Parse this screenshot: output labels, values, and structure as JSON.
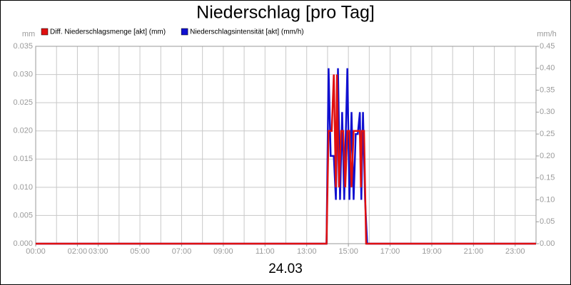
{
  "chart_data": {
    "type": "line",
    "title": "Niederschlag [pro Tag]",
    "subtitle": "24.03",
    "ylabel": "mm",
    "y2label": "mm/h",
    "xlim": [
      0,
      24
    ],
    "xticks": [
      {
        "value": 0,
        "label": "00:00"
      },
      {
        "value": 2,
        "label": "02:00"
      },
      {
        "value": 3,
        "label": "03:00"
      },
      {
        "value": 5,
        "label": "05:00"
      },
      {
        "value": 7,
        "label": "07:00"
      },
      {
        "value": 9,
        "label": "09:00"
      },
      {
        "value": 11,
        "label": "11:00"
      },
      {
        "value": 13,
        "label": "13:00"
      },
      {
        "value": 15,
        "label": "15:00"
      },
      {
        "value": 17,
        "label": "17:00"
      },
      {
        "value": 19,
        "label": "19:00"
      },
      {
        "value": 21,
        "label": "21:00"
      },
      {
        "value": 23,
        "label": "23:00"
      }
    ],
    "xgrid": [
      1,
      2,
      3,
      4,
      5,
      6,
      7,
      8,
      9,
      10,
      11,
      12,
      13,
      14,
      15,
      16,
      17,
      18,
      19,
      20,
      21,
      22,
      23
    ],
    "ylim": [
      0,
      0.035
    ],
    "yticks": [
      {
        "value": 0,
        "label": "0.000"
      },
      {
        "value": 0.005,
        "label": "0.005"
      },
      {
        "value": 0.01,
        "label": "0.010"
      },
      {
        "value": 0.015,
        "label": "0.015"
      },
      {
        "value": 0.02,
        "label": "0.020"
      },
      {
        "value": 0.025,
        "label": "0.025"
      },
      {
        "value": 0.03,
        "label": "0.030"
      },
      {
        "value": 0.035,
        "label": "0.035"
      }
    ],
    "y2lim": [
      0,
      0.45
    ],
    "y2ticks": [
      {
        "value": 0,
        "label": "0.00"
      },
      {
        "value": 0.05,
        "label": "0.05"
      },
      {
        "value": 0.1,
        "label": "0.10"
      },
      {
        "value": 0.15,
        "label": "0.15"
      },
      {
        "value": 0.2,
        "label": "0.20"
      },
      {
        "value": 0.25,
        "label": "0.25"
      },
      {
        "value": 0.3,
        "label": "0.30"
      },
      {
        "value": 0.35,
        "label": "0.35"
      },
      {
        "value": 0.4,
        "label": "0.40"
      },
      {
        "value": 0.45,
        "label": "0.45"
      }
    ],
    "grid": true,
    "series": [
      {
        "name": "Diff. Niederschlagsmenge [akt] (mm)",
        "color": "#e01010",
        "x": [
          0,
          13.95,
          14.05,
          14.2,
          14.3,
          14.4,
          14.45,
          14.55,
          14.65,
          14.75,
          14.85,
          14.95,
          15.05,
          15.15,
          15.25,
          15.35,
          15.45,
          15.55,
          15.6,
          15.65,
          15.75,
          15.85,
          24
        ],
        "values": [
          0,
          0,
          0.02,
          0.02,
          0.03,
          0.01,
          0.03,
          0.01,
          0.02,
          0.02,
          0.01,
          0.02,
          0.02,
          0.01,
          0.02,
          0.02,
          0.02,
          0.02,
          0.01,
          0.02,
          0.02,
          0,
          0
        ]
      },
      {
        "name": "Niederschlagsintensität [akt] (mm/h)",
        "color": "#1010d0",
        "axis": "y2",
        "x": [
          0,
          13.95,
          14.05,
          14.15,
          14.3,
          14.4,
          14.5,
          14.6,
          14.7,
          14.8,
          14.95,
          15.05,
          15.15,
          15.25,
          15.35,
          15.45,
          15.55,
          15.62,
          15.7,
          15.8,
          15.9,
          24
        ],
        "values": [
          0,
          0,
          0.4,
          0.2,
          0.2,
          0.1,
          0.4,
          0.1,
          0.3,
          0.1,
          0.4,
          0.1,
          0.3,
          0.1,
          0.25,
          0.25,
          0.3,
          0.1,
          0.3,
          0.1,
          0,
          0
        ]
      }
    ]
  }
}
